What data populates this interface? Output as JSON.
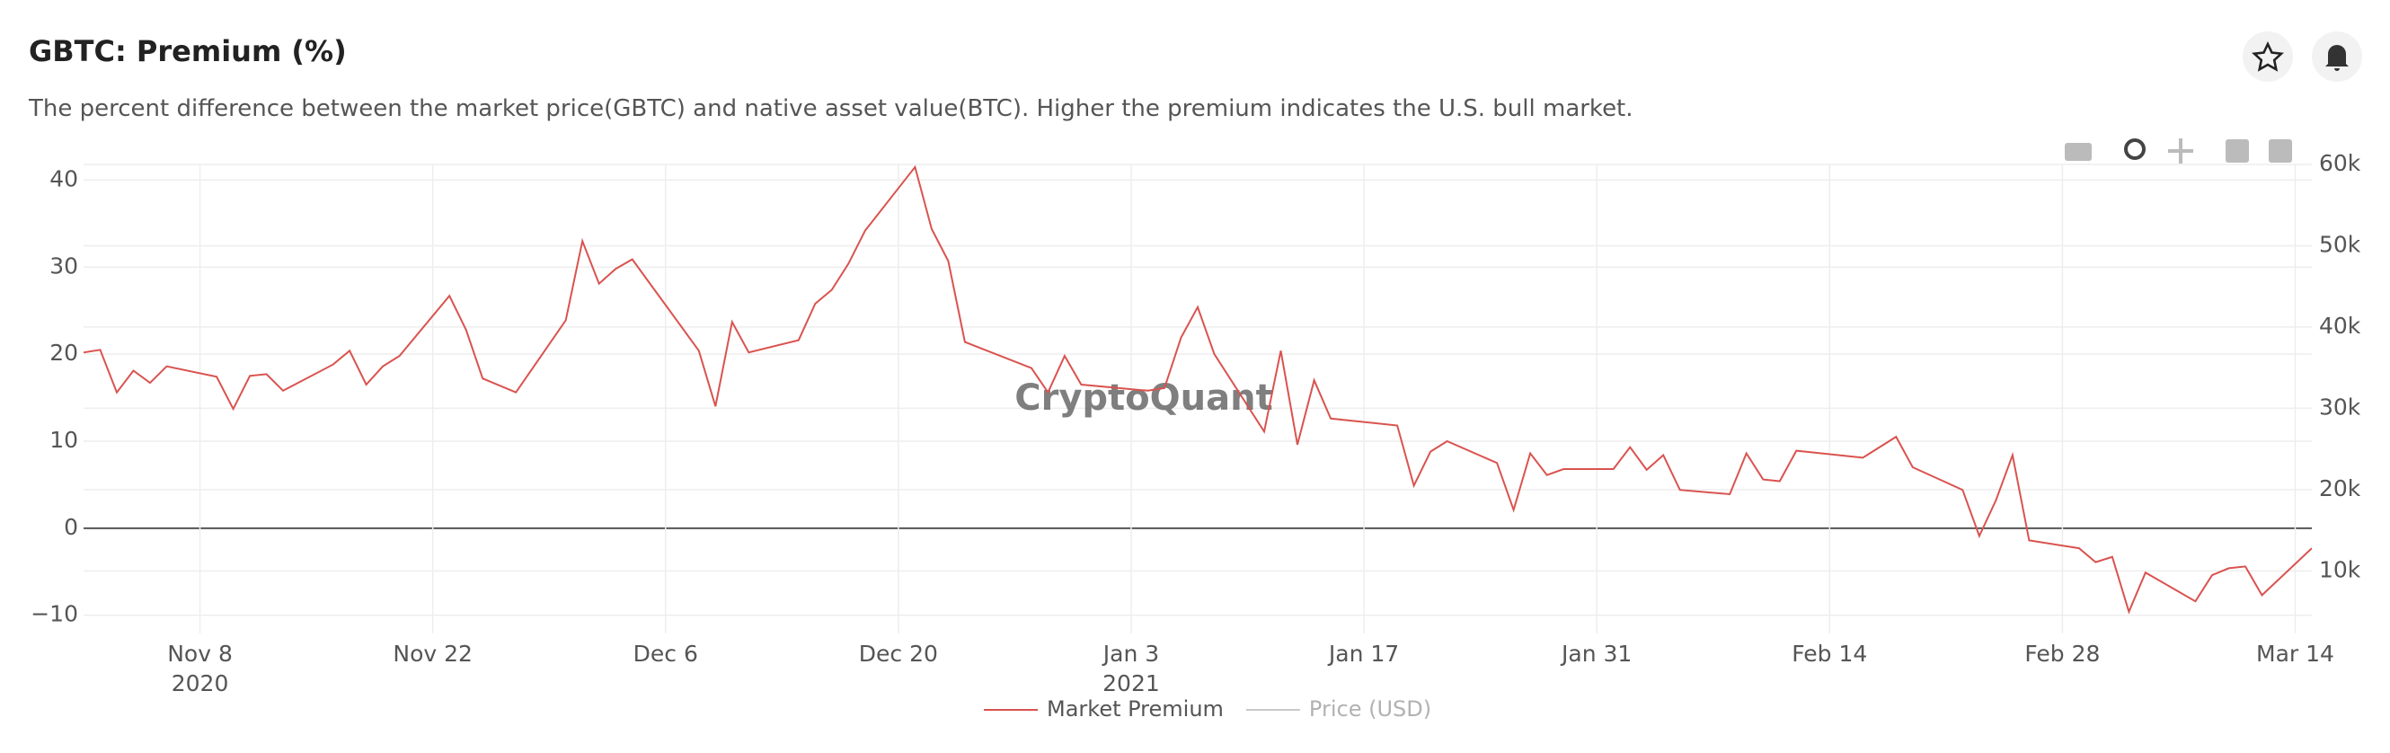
{
  "header": {
    "title": "GBTC: Premium (%)",
    "subtitle": "The percent difference between the market price(GBTC) and native asset value(BTC). Higher the premium indicates the U.S. bull market."
  },
  "chart_data": {
    "type": "line",
    "watermark": "CryptoQuant",
    "x": [
      "2020-11-01",
      "2020-11-02",
      "2020-11-03",
      "2020-11-04",
      "2020-11-05",
      "2020-11-06",
      "2020-11-09",
      "2020-11-10",
      "2020-11-11",
      "2020-11-12",
      "2020-11-13",
      "2020-11-16",
      "2020-11-17",
      "2020-11-18",
      "2020-11-19",
      "2020-11-20",
      "2020-11-23",
      "2020-11-24",
      "2020-11-25",
      "2020-11-27",
      "2020-11-30",
      "2020-12-01",
      "2020-12-02",
      "2020-12-03",
      "2020-12-04",
      "2020-12-08",
      "2020-12-09",
      "2020-12-10",
      "2020-12-11",
      "2020-12-14",
      "2020-12-15",
      "2020-12-16",
      "2020-12-17",
      "2020-12-18",
      "2020-12-21",
      "2020-12-22",
      "2020-12-23",
      "2020-12-24",
      "2020-12-28",
      "2020-12-29",
      "2020-12-30",
      "2020-12-31",
      "2021-01-04",
      "2021-01-05",
      "2021-01-06",
      "2021-01-07",
      "2021-01-08",
      "2021-01-11",
      "2021-01-12",
      "2021-01-13",
      "2021-01-14",
      "2021-01-15",
      "2021-01-19",
      "2021-01-20",
      "2021-01-21",
      "2021-01-22",
      "2021-01-25",
      "2021-01-26",
      "2021-01-27",
      "2021-01-28",
      "2021-01-29",
      "2021-02-01",
      "2021-02-02",
      "2021-02-03",
      "2021-02-04",
      "2021-02-05",
      "2021-02-08",
      "2021-02-09",
      "2021-02-10",
      "2021-02-11",
      "2021-02-12",
      "2021-02-16",
      "2021-02-18",
      "2021-02-19",
      "2021-02-22",
      "2021-02-23",
      "2021-02-24",
      "2021-02-25",
      "2021-02-26",
      "2021-03-01",
      "2021-03-02",
      "2021-03-03",
      "2021-03-04",
      "2021-03-05",
      "2021-03-08",
      "2021-03-09",
      "2021-03-10",
      "2021-03-11",
      "2021-03-12",
      "2021-03-15"
    ],
    "series": [
      {
        "name": "Market Premium",
        "color": "#d9534f",
        "values": [
          20.2,
          20.5,
          15.6,
          18.1,
          16.7,
          18.6,
          17.4,
          13.7,
          17.5,
          17.7,
          15.8,
          18.8,
          20.4,
          16.5,
          18.6,
          19.8,
          26.7,
          22.8,
          17.2,
          15.6,
          23.9,
          33.0,
          28.1,
          29.8,
          30.9,
          20.4,
          14.0,
          23.7,
          20.2,
          21.6,
          25.8,
          27.4,
          30.4,
          34.2,
          41.5,
          34.4,
          30.7,
          21.4,
          18.4,
          15.6,
          19.8,
          16.5,
          15.8,
          16.1,
          21.9,
          25.4,
          20.0,
          11.1,
          20.4,
          9.6,
          17.0,
          12.6,
          11.8,
          4.9,
          8.8,
          10.0,
          7.5,
          2.1,
          8.6,
          6.1,
          6.8,
          6.8,
          9.3,
          6.7,
          8.4,
          4.4,
          3.9,
          8.6,
          5.6,
          5.4,
          8.9,
          8.1,
          10.5,
          7.0,
          4.4,
          -0.9,
          3.2,
          8.4,
          -1.4,
          -2.3,
          -3.9,
          -3.3,
          -9.6,
          -5.1,
          -8.4,
          -5.4,
          -4.6,
          -4.4,
          -7.7,
          -2.3
        ]
      },
      {
        "name": "Price (USD)",
        "color": "#888888",
        "axis": "y2",
        "visible": false
      }
    ],
    "xlim": [
      "2020-11-01",
      "2021-03-15"
    ],
    "xticks": [
      {
        "value": "2020-11-08",
        "label": "Nov 8\n2020"
      },
      {
        "value": "2020-11-22",
        "label": "Nov 22"
      },
      {
        "value": "2020-12-06",
        "label": "Dec 6"
      },
      {
        "value": "2020-12-20",
        "label": "Dec 20"
      },
      {
        "value": "2021-01-03",
        "label": "Jan 3\n2021"
      },
      {
        "value": "2021-01-17",
        "label": "Jan 17"
      },
      {
        "value": "2021-01-31",
        "label": "Jan 31"
      },
      {
        "value": "2021-02-14",
        "label": "Feb 14"
      },
      {
        "value": "2021-02-28",
        "label": "Feb 28"
      },
      {
        "value": "2021-03-14",
        "label": "Mar 14"
      }
    ],
    "ylim": [
      -12.1,
      41.8
    ],
    "yticks": [
      {
        "value": -10,
        "label": "−10"
      },
      0,
      10,
      20,
      30,
      40
    ],
    "y2lim": [
      2300,
      60000
    ],
    "y2ticks": [
      {
        "value": 10000,
        "label": "10k"
      },
      {
        "value": 20000,
        "label": "20k"
      },
      {
        "value": 30000,
        "label": "30k"
      },
      {
        "value": 40000,
        "label": "40k"
      },
      {
        "value": 50000,
        "label": "50k"
      },
      {
        "value": 60000,
        "label": "60k"
      }
    ],
    "grid": true,
    "legend": "bottom"
  }
}
